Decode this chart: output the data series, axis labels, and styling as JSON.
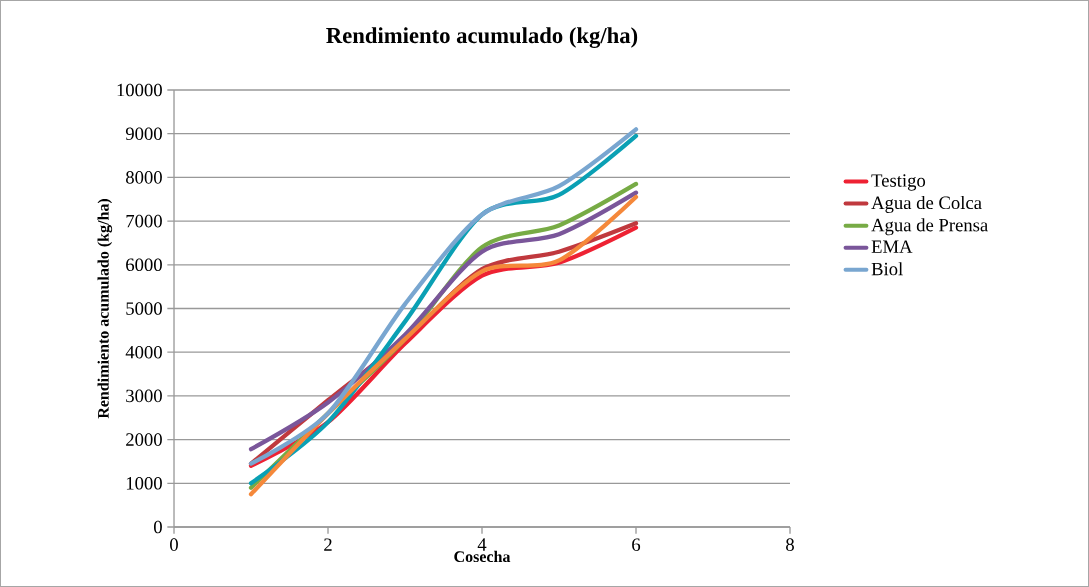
{
  "chart_data": {
    "type": "line",
    "title": "Rendimiento acumulado (kg/ha)",
    "xlabel": "Cosecha",
    "ylabel": "Rendimiento acumulado (kg/ha)",
    "x": [
      1,
      2,
      3,
      4,
      5,
      6
    ],
    "xlim": [
      0,
      8
    ],
    "xticks": [
      0,
      2,
      4,
      6,
      8
    ],
    "ylim": [
      0,
      10000
    ],
    "yticks": [
      0,
      1000,
      2000,
      3000,
      4000,
      5000,
      6000,
      7000,
      8000,
      9000,
      10000
    ],
    "grid": "y",
    "legend": "right",
    "marker": "none",
    "line_style": "solid",
    "series": [
      {
        "name": "Testigo",
        "color": "#ee2233",
        "values": [
          1400,
          2400,
          4200,
          5750,
          6050,
          6850
        ]
      },
      {
        "name": "Agua de Colca",
        "color": "#c0393e",
        "values": [
          1450,
          2900,
          4300,
          5900,
          6300,
          6950
        ]
      },
      {
        "name": "Agua de Prensa",
        "color": "#77ab45",
        "values": [
          900,
          2600,
          4300,
          6400,
          6900,
          7850
        ]
      },
      {
        "name": "EMA",
        "color": "#7a569a",
        "values": [
          1780,
          2850,
          4400,
          6300,
          6700,
          7650
        ]
      },
      {
        "color": "#0aa0b4",
        "values": [
          1000,
          2400,
          4700,
          7150,
          7600,
          8950
        ]
      },
      {
        "color": "#f5883a",
        "values": [
          750,
          2600,
          4300,
          5850,
          6100,
          7550
        ]
      },
      {
        "name": "Biol",
        "color": "#79a6d0",
        "values": [
          1450,
          2600,
          5100,
          7150,
          7800,
          9100
        ]
      }
    ]
  }
}
